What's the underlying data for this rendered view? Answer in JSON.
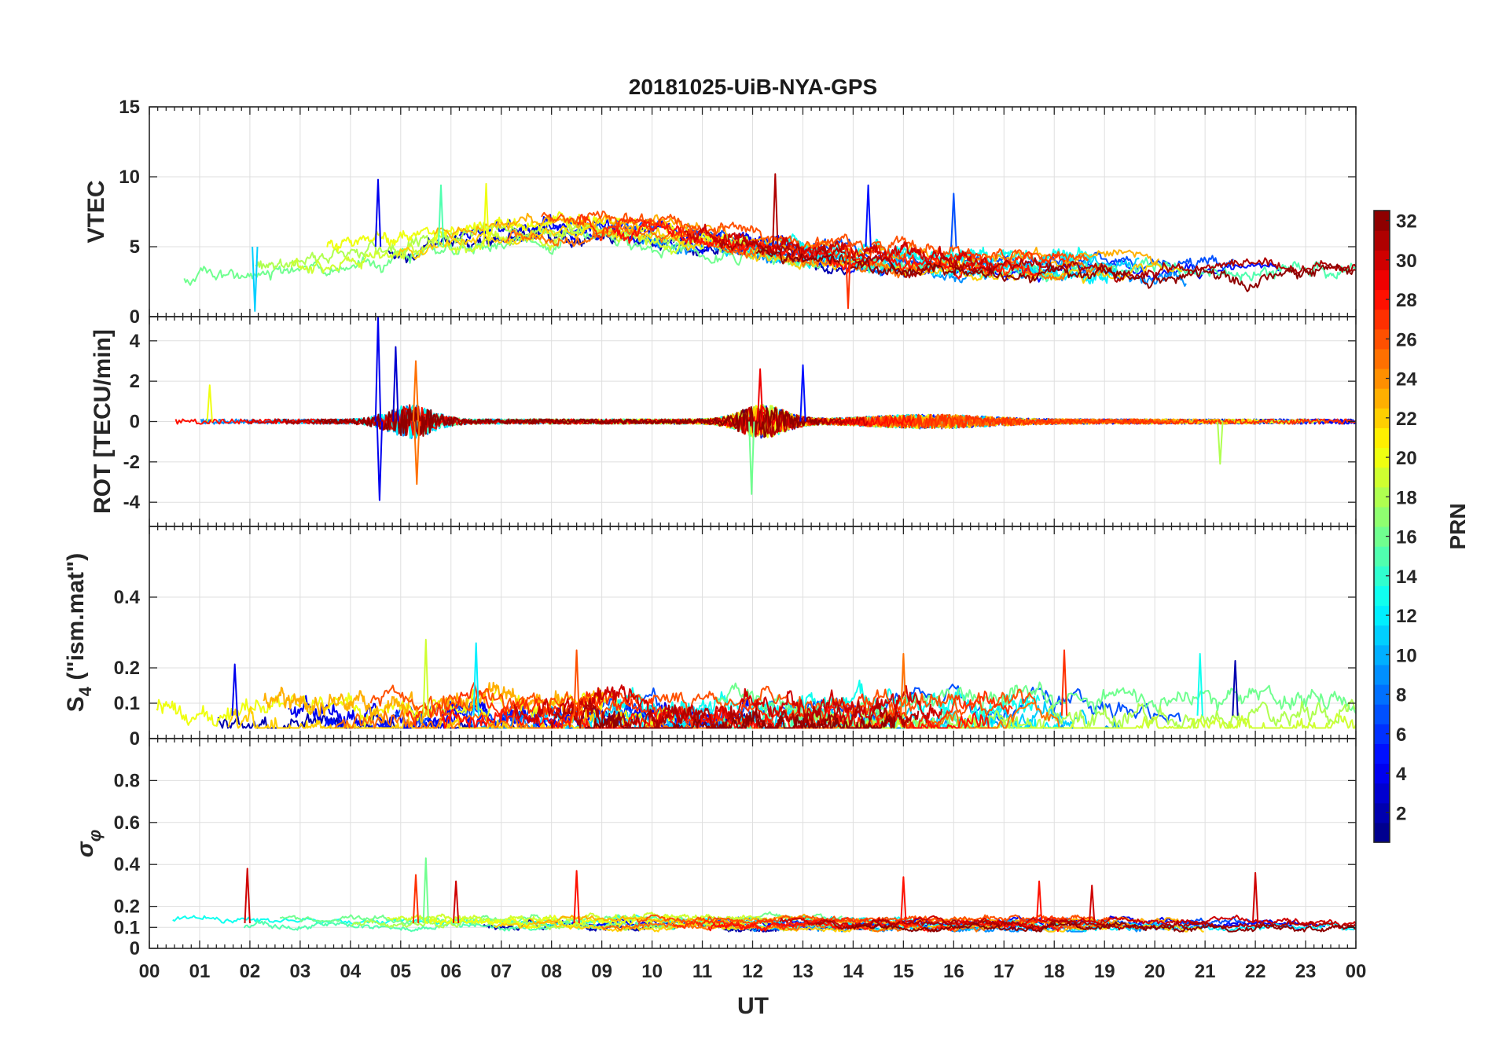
{
  "chart_data": {
    "type": "line",
    "title": "20181025-UiB-NYA-GPS",
    "xlabel": "UT",
    "x_tick_labels": [
      "00",
      "01",
      "02",
      "03",
      "04",
      "05",
      "06",
      "07",
      "08",
      "09",
      "10",
      "11",
      "12",
      "13",
      "14",
      "15",
      "16",
      "17",
      "18",
      "19",
      "20",
      "21",
      "22",
      "23",
      "00"
    ],
    "xlim": [
      0,
      24
    ],
    "panels": [
      {
        "id": "vtec",
        "ylabel": "VTEC",
        "ylim": [
          0,
          15
        ],
        "yticks": [
          0,
          5,
          10,
          15
        ],
        "ytick_labels": [
          "0",
          "5",
          "10",
          "15"
        ],
        "baseline": 3.5,
        "noise": 0.4,
        "features": [
          {
            "t": 4.55,
            "v": 9.8,
            "prn": 4
          },
          {
            "t": 5.8,
            "v": 9.4,
            "prn": 15
          },
          {
            "t": 6.7,
            "v": 9.5,
            "prn": 20
          },
          {
            "t": 12.45,
            "v": 10.2,
            "prn": 31
          },
          {
            "t": 14.3,
            "v": 9.4,
            "prn": 5
          },
          {
            "t": 16.0,
            "v": 8.8,
            "prn": 7
          },
          {
            "t": 13.9,
            "v": 0.6,
            "prn": 27
          },
          {
            "t": 2.1,
            "v": 0.4,
            "prn": 11
          }
        ]
      },
      {
        "id": "rot",
        "ylabel": "ROT [TECU/min]",
        "ylim": [
          -5.2,
          5.2
        ],
        "yticks": [
          -4,
          -2,
          0,
          2,
          4
        ],
        "ytick_labels": [
          "-4",
          "-2",
          "0",
          "2",
          "4"
        ],
        "baseline": 0,
        "noise": 0.12,
        "features": [
          {
            "t": 4.55,
            "v": 5.2,
            "prn": 4
          },
          {
            "t": 4.58,
            "v": -3.9,
            "prn": 4
          },
          {
            "t": 4.9,
            "v": 3.7,
            "prn": 3
          },
          {
            "t": 5.3,
            "v": 3.0,
            "prn": 25
          },
          {
            "t": 5.32,
            "v": -3.1,
            "prn": 25
          },
          {
            "t": 12.15,
            "v": 2.6,
            "prn": 29
          },
          {
            "t": 11.98,
            "v": -3.6,
            "prn": 16
          },
          {
            "t": 13.0,
            "v": 2.8,
            "prn": 5
          },
          {
            "t": 21.3,
            "v": -2.1,
            "prn": 18
          },
          {
            "t": 1.2,
            "v": 1.8,
            "prn": 20
          }
        ]
      },
      {
        "id": "s4",
        "ylabel": "S4 (\"ism.mat\")",
        "ylabel_main": "S",
        "ylabel_sub": "4",
        "ylabel_rest": " (\"ism.mat\")",
        "ylim": [
          0,
          0.6
        ],
        "yticks": [
          0,
          0.1,
          0.2,
          0.4
        ],
        "ytick_labels": [
          "0",
          "0.1",
          "0.2",
          "0.4"
        ],
        "baseline": 0.065,
        "noise": 0.025,
        "features": [
          {
            "t": 1.7,
            "v": 0.21,
            "prn": 4
          },
          {
            "t": 5.5,
            "v": 0.28,
            "prn": 19
          },
          {
            "t": 6.5,
            "v": 0.27,
            "prn": 12
          },
          {
            "t": 8.5,
            "v": 0.25,
            "prn": 26
          },
          {
            "t": 15.0,
            "v": 0.24,
            "prn": 25
          },
          {
            "t": 18.2,
            "v": 0.25,
            "prn": 27
          },
          {
            "t": 20.9,
            "v": 0.24,
            "prn": 13
          },
          {
            "t": 21.6,
            "v": 0.22,
            "prn": 2
          }
        ]
      },
      {
        "id": "sigphi",
        "ylabel": "σφ",
        "ylabel_main": "σ",
        "ylabel_sub": "φ",
        "ylim": [
          0,
          1
        ],
        "yticks": [
          0,
          0.1,
          0.2,
          0.4,
          0.6,
          0.8
        ],
        "ytick_labels": [
          "0",
          "0.1",
          "0.2",
          "0.4",
          "0.6",
          "0.8"
        ],
        "baseline": 0.12,
        "noise": 0.012,
        "features": [
          {
            "t": 1.95,
            "v": 0.38,
            "prn": 30
          },
          {
            "t": 5.3,
            "v": 0.35,
            "prn": 27
          },
          {
            "t": 5.5,
            "v": 0.43,
            "prn": 16
          },
          {
            "t": 6.1,
            "v": 0.32,
            "prn": 30
          },
          {
            "t": 8.5,
            "v": 0.37,
            "prn": 28
          },
          {
            "t": 15.0,
            "v": 0.34,
            "prn": 28
          },
          {
            "t": 17.7,
            "v": 0.32,
            "prn": 28
          },
          {
            "t": 18.75,
            "v": 0.3,
            "prn": 30
          },
          {
            "t": 22.0,
            "v": 0.36,
            "prn": 30
          }
        ]
      }
    ],
    "series_prns": [
      2,
      4,
      5,
      7,
      9,
      11,
      12,
      13,
      15,
      16,
      18,
      19,
      20,
      22,
      23,
      25,
      26,
      27,
      28,
      30,
      31,
      32
    ],
    "colorbar": {
      "label": "PRN",
      "range": [
        1,
        32
      ],
      "ticks": [
        2,
        4,
        6,
        8,
        10,
        12,
        14,
        16,
        18,
        20,
        22,
        24,
        26,
        28,
        30,
        32
      ],
      "tick_labels": [
        "2",
        "4",
        "6",
        "8",
        "10",
        "12",
        "14",
        "16",
        "18",
        "20",
        "22",
        "24",
        "26",
        "28",
        "30",
        "32"
      ],
      "colormap": "jet"
    }
  }
}
